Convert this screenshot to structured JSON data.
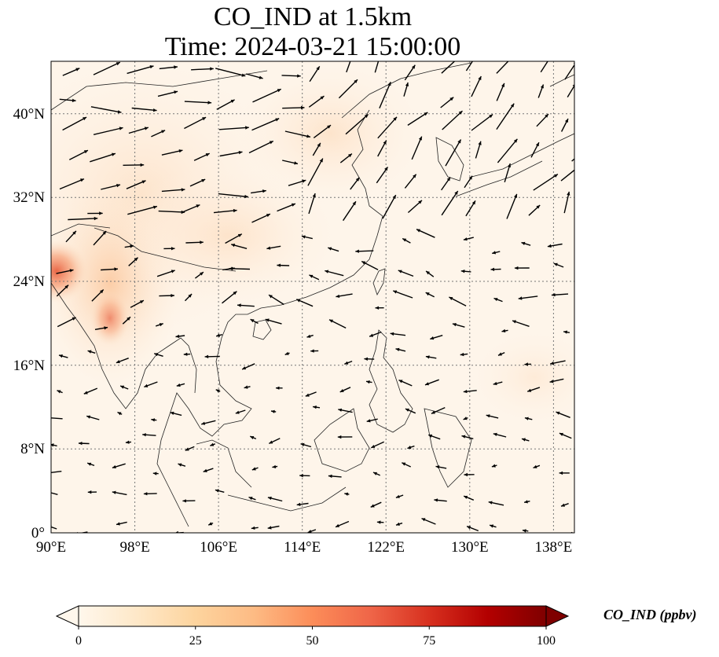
{
  "title": {
    "line1": "CO_IND at 1.5km",
    "line2": "Time: 2024-03-21 15:00:00"
  },
  "map": {
    "variable": "CO_IND",
    "height_level": "1.5km",
    "lon_range": [
      90,
      140
    ],
    "lat_range": [
      0,
      45
    ],
    "lon_ticks": [
      90,
      98,
      106,
      114,
      122,
      130,
      138
    ],
    "lat_ticks": [
      0,
      8,
      16,
      24,
      32,
      40
    ],
    "lon_tick_labels": [
      "90°E",
      "98°E",
      "106°E",
      "114°E",
      "122°E",
      "130°E",
      "138°E"
    ],
    "lat_tick_labels": [
      "0°",
      "8°N",
      "16°N",
      "24°N",
      "32°N",
      "40°N"
    ],
    "gridlines": "dotted",
    "vectors": "wind arrows (black)"
  },
  "colorbar": {
    "label": "CO_IND (ppbv)",
    "min": 0,
    "max": 100,
    "ticks": [
      0,
      25,
      50,
      75,
      100
    ],
    "tick_labels": [
      "0",
      "25",
      "50",
      "75",
      "100"
    ],
    "colormap": "OrRd",
    "colors": [
      "#fff7ec",
      "#fee8c8",
      "#fdd49e",
      "#fdbb84",
      "#fc8d59",
      "#ef6548",
      "#d7301f",
      "#b30000",
      "#7f0000"
    ],
    "extend": "both"
  }
}
